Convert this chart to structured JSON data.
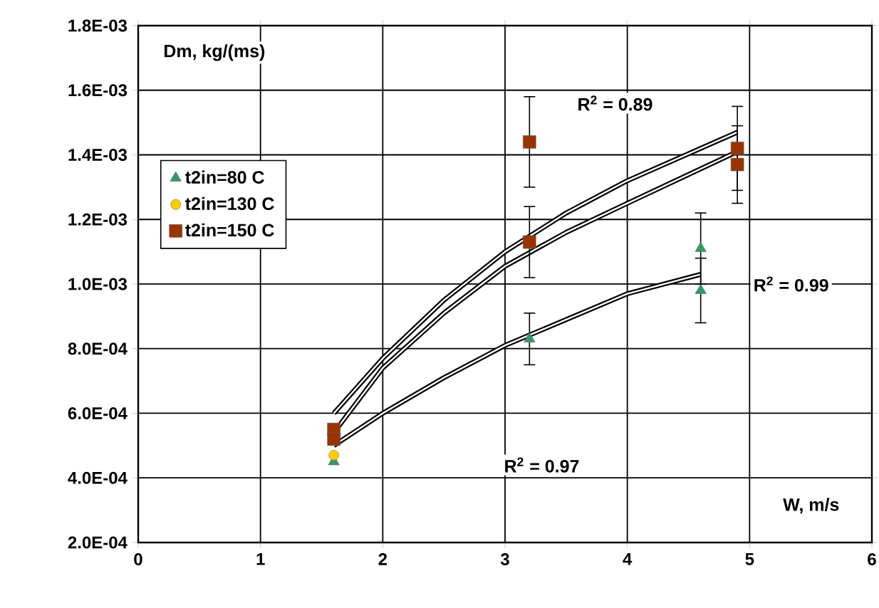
{
  "chart_data": {
    "type": "scatter",
    "xlabel": "W, m/s",
    "ylabel": "Dm, kg/(ms)",
    "xlim": [
      0,
      6
    ],
    "xticks": [
      0,
      1,
      2,
      3,
      4,
      5,
      6
    ],
    "ylim": [
      0.0002,
      0.0018
    ],
    "yticks": [
      {
        "value": 0.0002,
        "label": "2.0E-04"
      },
      {
        "value": 0.0004,
        "label": "4.0E-04"
      },
      {
        "value": 0.0006,
        "label": "6.0E-04"
      },
      {
        "value": 0.0008,
        "label": "8.0E-04"
      },
      {
        "value": 0.001,
        "label": "1.0E-03"
      },
      {
        "value": 0.0012,
        "label": "1.2E-03"
      },
      {
        "value": 0.0014,
        "label": "1.4E-03"
      },
      {
        "value": 0.0016,
        "label": "1.6E-03"
      },
      {
        "value": 0.0018,
        "label": "1.8E-03"
      }
    ],
    "grid": true,
    "legend": "top left",
    "series": [
      {
        "type": "line",
        "color": "#000000",
        "marker": "none",
        "x": [
          1.6,
          2,
          2.5,
          3,
          3.5,
          4,
          4.6
        ],
        "values": [
          0.0005,
          0.0006,
          0.00071,
          0.00081,
          0.00089,
          0.00097,
          0.00103
        ]
      },
      {
        "type": "line",
        "color": "#000000",
        "marker": "none",
        "x": [
          1.6,
          2,
          2.5,
          3,
          3.5,
          4,
          4.9
        ],
        "values": [
          0.00054,
          0.00074,
          0.00091,
          0.001055,
          0.00116,
          0.00125,
          0.00141
        ]
      },
      {
        "type": "line",
        "color": "#000000",
        "marker": "none",
        "x": [
          1.6,
          2,
          2.5,
          3,
          3.5,
          4,
          4.9
        ],
        "values": [
          0.0006,
          0.00077,
          0.00095,
          0.0011,
          0.00122,
          0.00132,
          0.00147
        ]
      },
      {
        "name": "t2in=80 C",
        "color": "#339966",
        "marker": "triangle",
        "x": [
          1.6,
          3.2,
          4.6,
          4.6
        ],
        "values": [
          0.00045,
          0.00083,
          0.00111,
          0.00098
        ],
        "errors": [
          null,
          8e-05,
          0.00011,
          0.0001
        ]
      },
      {
        "name": "t2in=130 C",
        "color": "#ffcc00",
        "marker": "circle",
        "x": [
          1.6
        ],
        "values": [
          0.00047
        ]
      },
      {
        "name": "t2in=150 C",
        "color": "#993300",
        "marker": "square",
        "x": [
          1.6,
          1.6,
          3.2,
          3.2,
          4.9,
          4.9
        ],
        "values": [
          0.00055,
          0.00052,
          0.00144,
          0.00113,
          0.00142,
          0.00137
        ],
        "errors": [
          null,
          null,
          0.00014,
          0.00011,
          0.00013,
          0.00012
        ]
      }
    ],
    "annotations": [
      "R$^{2}$ = 0.89",
      "R$^{2}$ = 0.99",
      "R$^{2}$ = 0.97"
    ]
  }
}
